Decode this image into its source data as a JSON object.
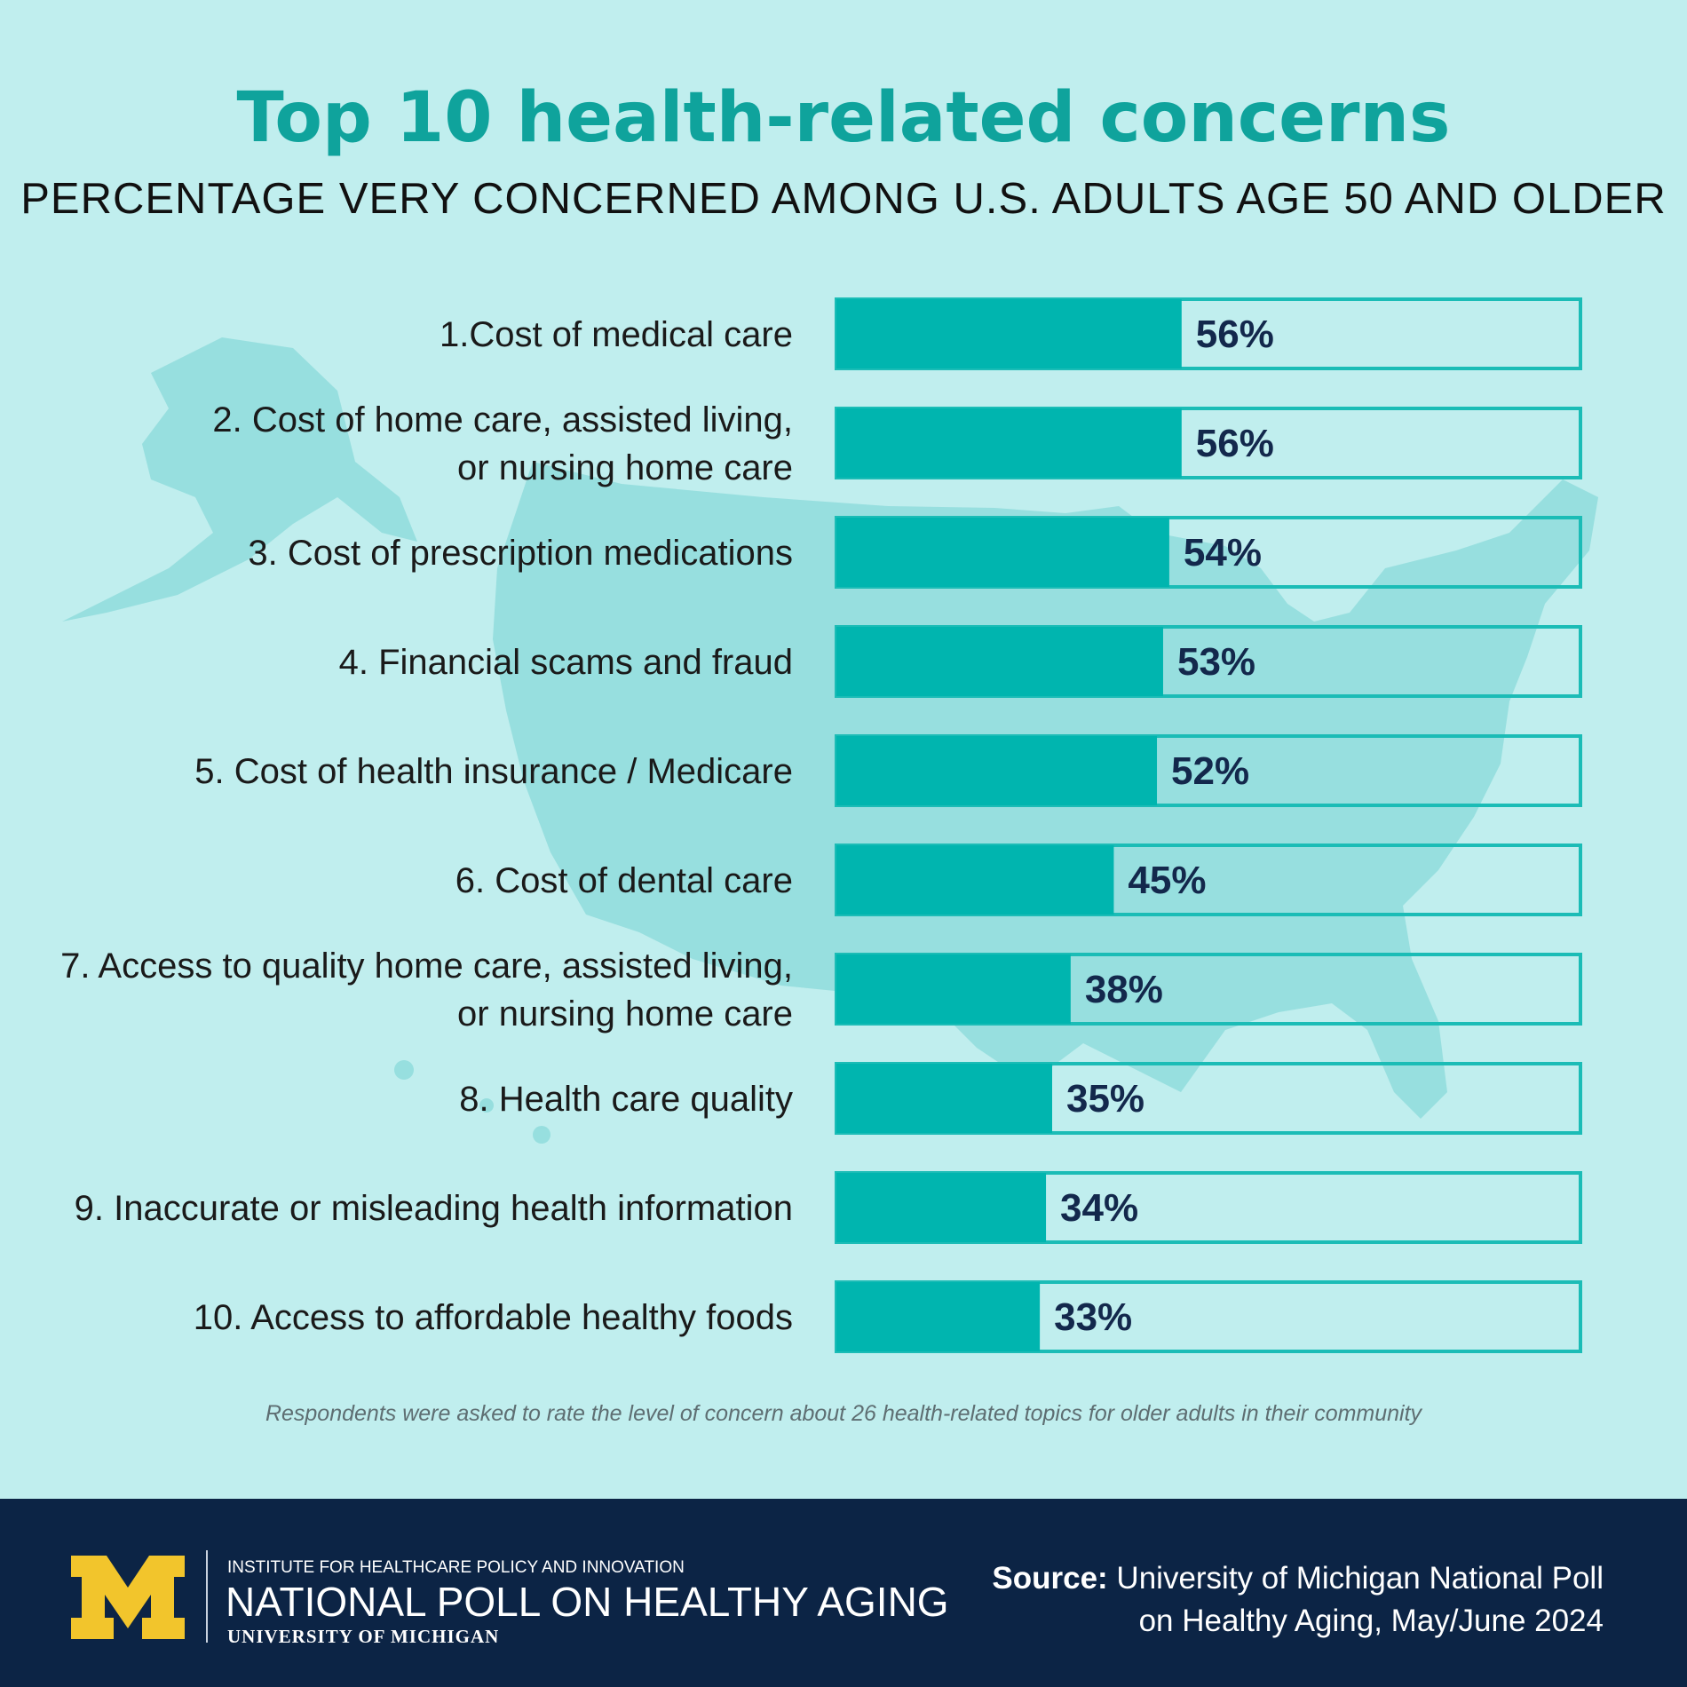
{
  "header": {
    "title": "Top 10 health-related concerns",
    "subtitle": "PERCENTAGE VERY CONCERNED AMONG U.S. ADULTS AGE 50 AND OLDER"
  },
  "chart_data": {
    "type": "bar",
    "orientation": "horizontal",
    "title": "Top 10 health-related concerns",
    "subtitle": "PERCENTAGE VERY CONCERNED AMONG U.S. ADULTS AGE 50 AND OLDER",
    "xlim": [
      0,
      100
    ],
    "grid": false,
    "categories": [
      [
        "1.Cost of medical care"
      ],
      [
        "2. Cost of home care, assisted living,",
        "or nursing home care"
      ],
      [
        "3. Cost of prescription medications"
      ],
      [
        "4. Financial scams and fraud"
      ],
      [
        "5. Cost of health insurance / Medicare"
      ],
      [
        "6. Cost of dental care"
      ],
      [
        "7. Access to quality home care, assisted living,",
        "or nursing home care"
      ],
      [
        "8. Health care quality"
      ],
      [
        "9. Inaccurate or misleading health information"
      ],
      [
        "10. Access to affordable healthy foods"
      ]
    ],
    "values": [
      56,
      56,
      54,
      53,
      52,
      45,
      38,
      35,
      34,
      33
    ],
    "value_labels": [
      "56%",
      "56%",
      "54%",
      "53%",
      "52%",
      "45%",
      "38%",
      "35%",
      "34%",
      "33%"
    ],
    "colors": {
      "bar": "#00b5af",
      "track_border": "#1bbcb6",
      "value_text": "#13284c"
    }
  },
  "note": "Respondents were asked to rate the level of concern about 26 health-related topics for older adults in their community",
  "footer": {
    "logo_letter": "M",
    "institute": "INSTITUTE FOR HEALTHCARE POLICY AND INNOVATION",
    "poll_name": "NATIONAL POLL ON HEALTHY AGING",
    "university": "UNIVERSITY OF MICHIGAN",
    "source_label": "Source:",
    "source_line1": "University of Michigan National Poll",
    "source_line2": "on Healthy Aging, May/June 2024"
  },
  "colors": {
    "background": "#c0eeee",
    "map": "#8fdcdc",
    "title": "#0fa39c",
    "footer": "#0c2445",
    "logo": "#f2c52c"
  }
}
